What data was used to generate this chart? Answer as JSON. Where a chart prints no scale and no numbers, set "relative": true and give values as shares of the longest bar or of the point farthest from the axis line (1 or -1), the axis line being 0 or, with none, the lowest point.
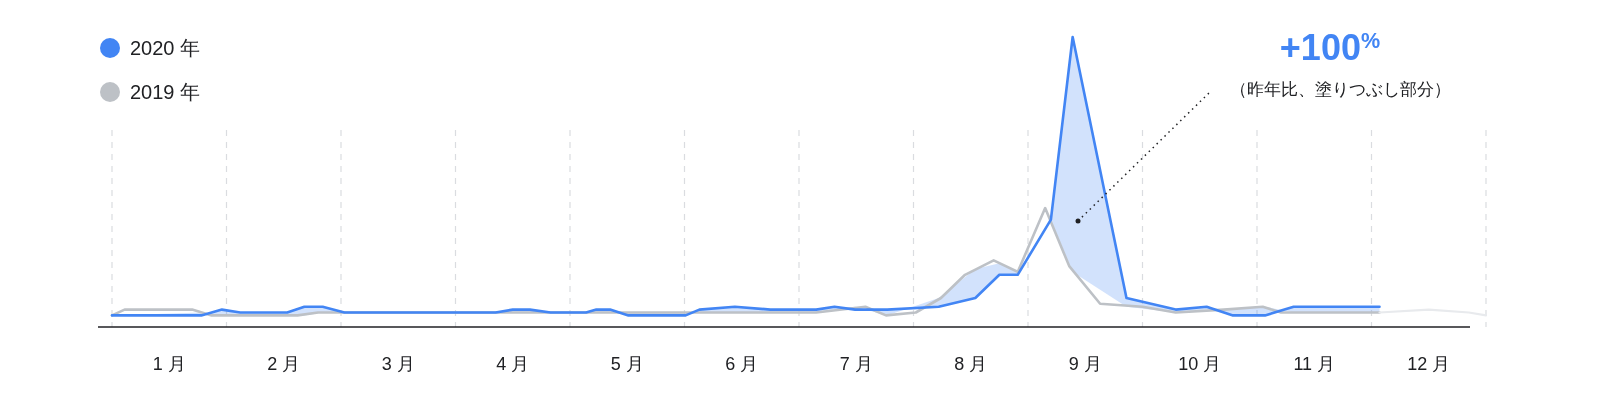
{
  "chart_data": {
    "type": "line",
    "relative": true,
    "xlim": [
      0,
      12
    ],
    "xticks": [
      {
        "value": 0.5,
        "label": "1 月"
      },
      {
        "value": 1.5,
        "label": "2 月"
      },
      {
        "value": 2.5,
        "label": "3 月"
      },
      {
        "value": 3.5,
        "label": "4 月"
      },
      {
        "value": 4.5,
        "label": "5 月"
      },
      {
        "value": 5.5,
        "label": "6 月"
      },
      {
        "value": 6.5,
        "label": "7 月"
      },
      {
        "value": 7.5,
        "label": "8 月"
      },
      {
        "value": 8.5,
        "label": "9 月"
      },
      {
        "value": 9.5,
        "label": "10 月"
      },
      {
        "value": 10.5,
        "label": "11 月"
      },
      {
        "value": 11.5,
        "label": "12 月"
      }
    ],
    "legend": "top left",
    "ref_lines": [
      {
        "axis": "x",
        "value": 0,
        "color": "#dadce0",
        "line_style": "dashed"
      },
      {
        "axis": "x",
        "value": 1,
        "color": "#dadce0",
        "line_style": "dashed"
      },
      {
        "axis": "x",
        "value": 2,
        "color": "#dadce0",
        "line_style": "dashed"
      },
      {
        "axis": "x",
        "value": 3,
        "color": "#dadce0",
        "line_style": "dashed"
      },
      {
        "axis": "x",
        "value": 4,
        "color": "#dadce0",
        "line_style": "dashed"
      },
      {
        "axis": "x",
        "value": 5,
        "color": "#dadce0",
        "line_style": "dashed"
      },
      {
        "axis": "x",
        "value": 6,
        "color": "#dadce0",
        "line_style": "dashed"
      },
      {
        "axis": "x",
        "value": 7,
        "color": "#dadce0",
        "line_style": "dashed"
      },
      {
        "axis": "x",
        "value": 8,
        "color": "#dadce0",
        "line_style": "dashed"
      },
      {
        "axis": "x",
        "value": 9,
        "color": "#dadce0",
        "line_style": "dashed"
      },
      {
        "axis": "x",
        "value": 10,
        "color": "#dadce0",
        "line_style": "dashed"
      },
      {
        "axis": "x",
        "value": 11,
        "color": "#dadce0",
        "line_style": "dashed"
      },
      {
        "axis": "x",
        "value": 12,
        "color": "#dadce0",
        "line_style": "dashed"
      }
    ],
    "series": [
      {
        "name": "2019 年",
        "color": "#bdc1c6",
        "x": [
          0,
          0.11,
          0.7,
          0.87,
          1.62,
          1.8,
          4.14,
          4.51,
          6.15,
          6.58,
          6.76,
          7.02,
          7.24,
          7.45,
          7.7,
          7.91,
          8.15,
          8.36,
          8.63,
          9.0,
          9.29,
          9.71,
          10.05,
          10.21,
          11.07
        ],
        "values": [
          0.04,
          0.06,
          0.06,
          0.04,
          0.04,
          0.05,
          0.05,
          0.05,
          0.05,
          0.07,
          0.04,
          0.05,
          0.1,
          0.18,
          0.23,
          0.19,
          0.41,
          0.21,
          0.08,
          0.07,
          0.05,
          0.06,
          0.07,
          0.05,
          0.05
        ]
      },
      {
        "color": "#e8eaed",
        "x": [
          11.07,
          11.5,
          11.85,
          12.0
        ],
        "values": [
          0.05,
          0.06,
          0.05,
          0.04
        ]
      },
      {
        "name": "2020 年",
        "color": "#4285f4",
        "x": [
          0,
          0.78,
          0.96,
          1.12,
          1.53,
          1.68,
          1.84,
          2.03,
          3.35,
          3.5,
          3.65,
          3.83,
          4.14,
          4.23,
          4.35,
          4.51,
          5.01,
          5.13,
          5.44,
          5.75,
          6.15,
          6.31,
          6.49,
          6.77,
          7.22,
          7.54,
          7.75,
          7.91,
          8.2,
          8.39,
          8.86,
          9.29,
          9.56,
          9.79,
          10.07,
          10.32,
          11.07
        ],
        "values": [
          0.04,
          0.04,
          0.06,
          0.05,
          0.05,
          0.07,
          0.07,
          0.05,
          0.05,
          0.06,
          0.06,
          0.05,
          0.05,
          0.06,
          0.06,
          0.04,
          0.04,
          0.06,
          0.07,
          0.06,
          0.06,
          0.07,
          0.06,
          0.06,
          0.07,
          0.1,
          0.18,
          0.18,
          0.37,
          1,
          0.1,
          0.06,
          0.07,
          0.04,
          0.04,
          0.07,
          0.07
        ],
        "lower": [
          0.04,
          0.05,
          0.04,
          0.04,
          0.04,
          0.04,
          0.05,
          0.05,
          0.05,
          0.05,
          0.05,
          0.05,
          0.05,
          0.05,
          0.05,
          0.05,
          0.05,
          0.05,
          0.05,
          0.05,
          0.05,
          0.06,
          0.07,
          0.04,
          0.1,
          0.2,
          0.22,
          0.19,
          0.37,
          0.19,
          0.07,
          0.05,
          0.06,
          0.06,
          0.07,
          0.05,
          0.05
        ],
        "upper": [
          0.04,
          0.04,
          0.06,
          0.05,
          0.05,
          0.07,
          0.07,
          0.05,
          0.05,
          0.06,
          0.06,
          0.05,
          0.05,
          0.06,
          0.06,
          0.04,
          0.04,
          0.06,
          0.07,
          0.06,
          0.06,
          0.07,
          0.06,
          0.06,
          0.07,
          0.1,
          0.18,
          0.18,
          0.37,
          1,
          0.1,
          0.06,
          0.07,
          0.04,
          0.04,
          0.07,
          0.07
        ]
      }
    ],
    "annotations": [
      "+100$^{%}$",
      "（昨年比、塗りつぶし部分）"
    ]
  }
}
